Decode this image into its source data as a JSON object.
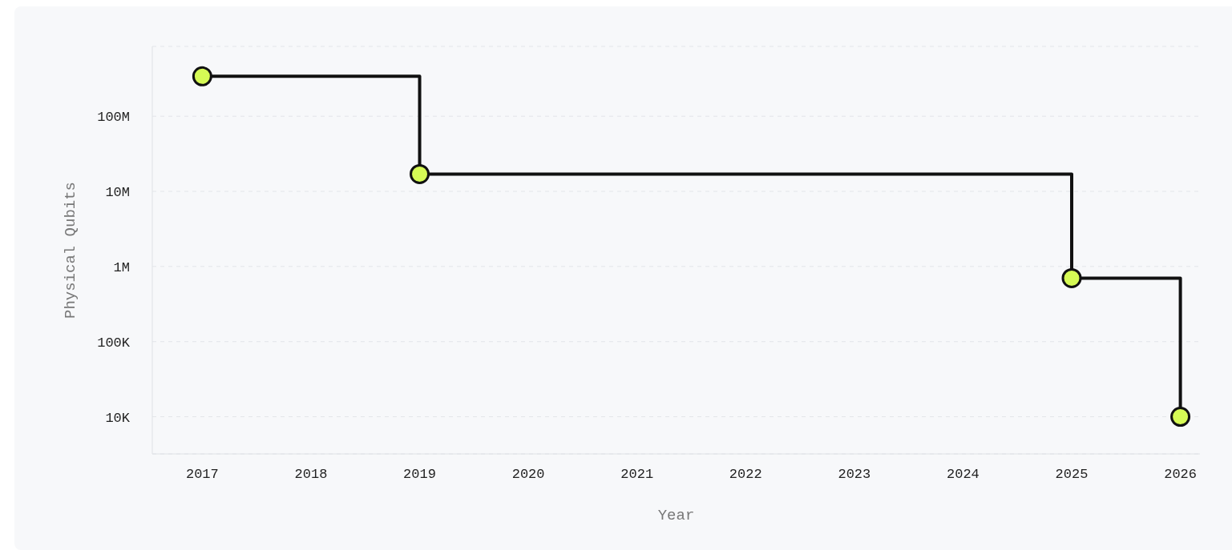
{
  "chart_data": {
    "type": "step",
    "xlabel": "Year",
    "ylabel": "Physical Qubits",
    "x": [
      2017,
      2019,
      2025,
      2026
    ],
    "series": [
      {
        "color": "#111111",
        "values": [
          340000000,
          17000000,
          700000,
          10000
        ]
      }
    ],
    "xlim": [
      2016.54,
      2026.18
    ],
    "xticks": [
      2017,
      2018,
      2019,
      2020,
      2021,
      2022,
      2023,
      2024,
      2025,
      2026
    ],
    "ylim": [
      3200,
      850000000
    ],
    "yticks": [
      {
        "value": 10000,
        "label": "10K"
      },
      {
        "value": 100000,
        "label": "100K"
      },
      {
        "value": 1000000,
        "label": "1M"
      },
      {
        "value": 10000000,
        "label": "10M"
      },
      {
        "value": 100000000,
        "label": "100M"
      }
    ],
    "log": "y",
    "grid": "y",
    "legend": false,
    "marker": "circle",
    "line_style": "solid"
  }
}
